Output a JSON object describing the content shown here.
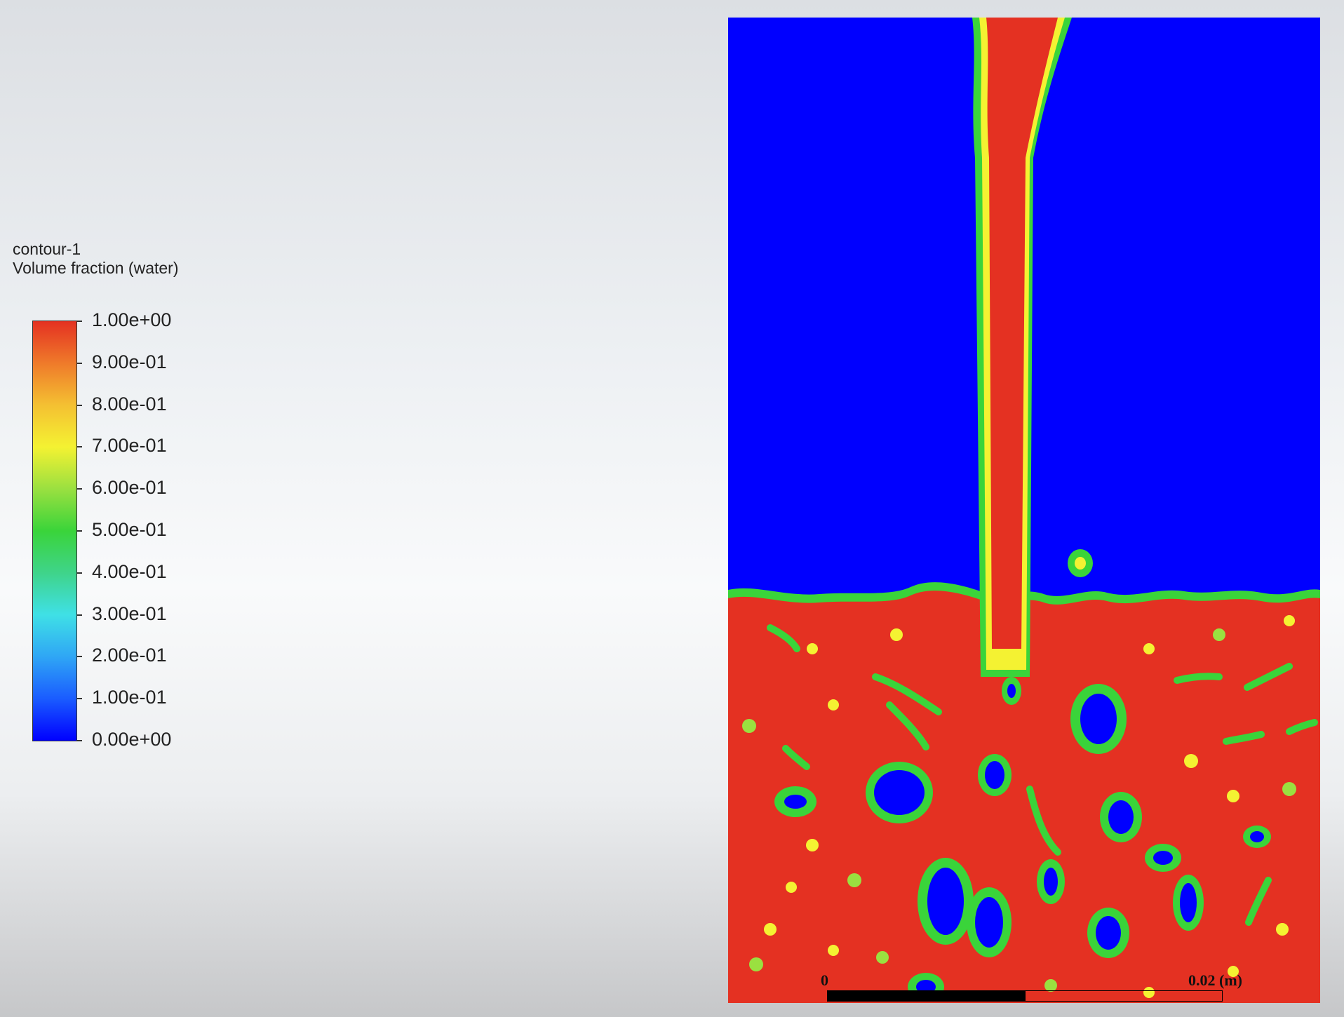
{
  "legend": {
    "title": "contour-1",
    "subtitle": "Volume fraction (water)",
    "ticks": [
      "1.00e+00",
      "9.00e-01",
      "8.00e-01",
      "7.00e-01",
      "6.00e-01",
      "5.00e-01",
      "4.00e-01",
      "3.00e-01",
      "2.00e-01",
      "1.00e-01",
      "0.00e+00"
    ],
    "min": 0,
    "max": 1
  },
  "colors": {
    "water": "#e43122",
    "air": "#0000ff",
    "interface": "#3ad43a"
  },
  "scale_bar": {
    "start_label": "0",
    "end_label": "0.02 (m)"
  }
}
